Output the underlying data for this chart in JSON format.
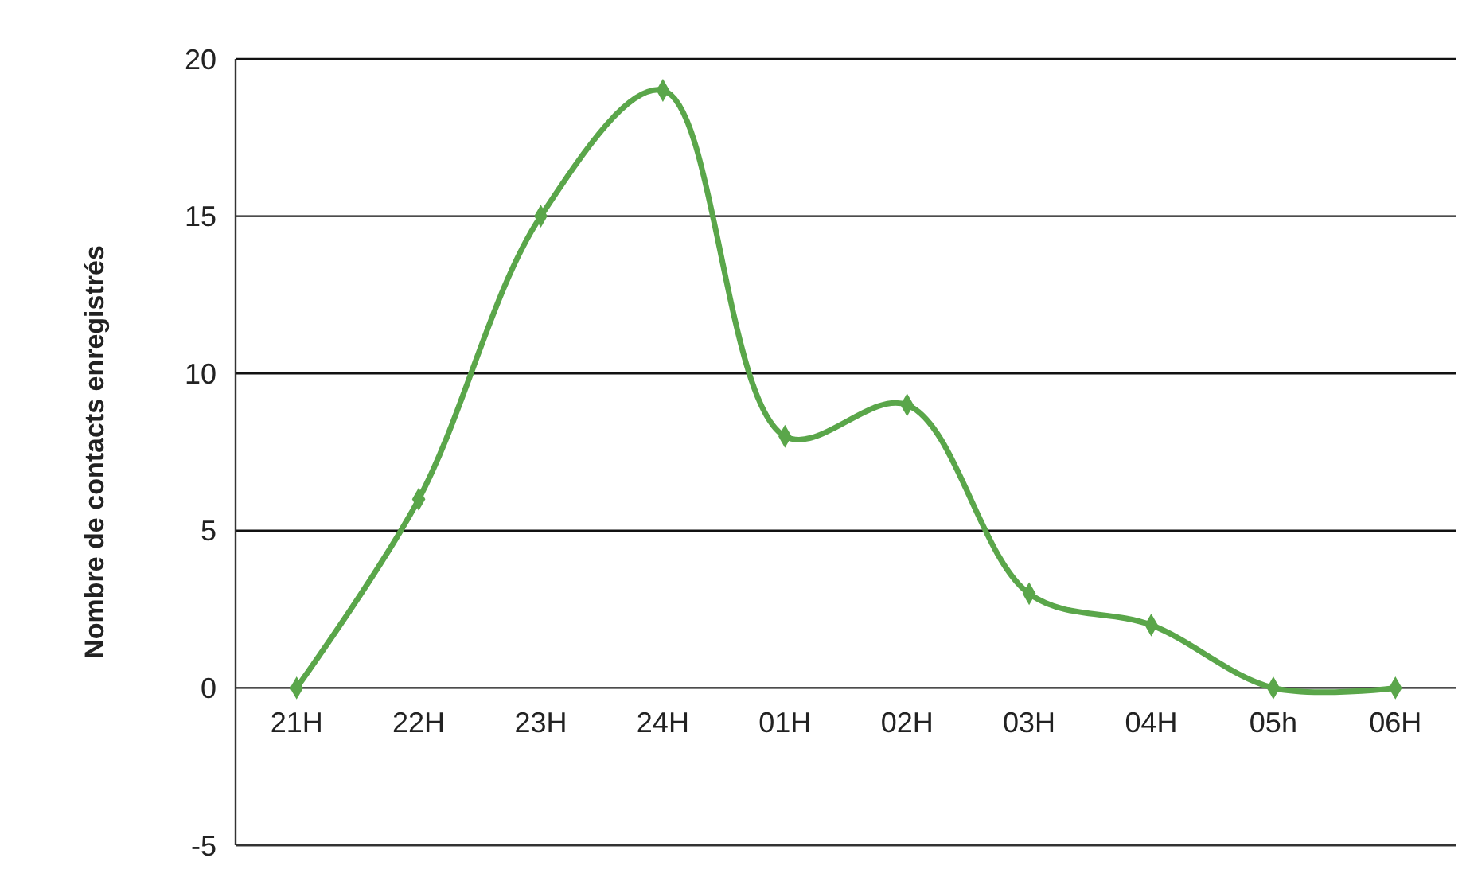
{
  "chart_data": {
    "type": "line",
    "ylabel": "Nombre de contacts enregistrés",
    "categories": [
      "21H",
      "22H",
      "23H",
      "24H",
      "01H",
      "02H",
      "03H",
      "04H",
      "05h",
      "06H"
    ],
    "values": [
      0,
      6,
      15,
      19,
      8,
      9,
      3,
      2,
      0,
      0
    ],
    "color": "#5aa64a",
    "marker": "diamond",
    "line_style": "solid",
    "ylim": [
      -5,
      20
    ],
    "yticks": [
      -5,
      0,
      5,
      10,
      15,
      20
    ],
    "grid": "y"
  }
}
